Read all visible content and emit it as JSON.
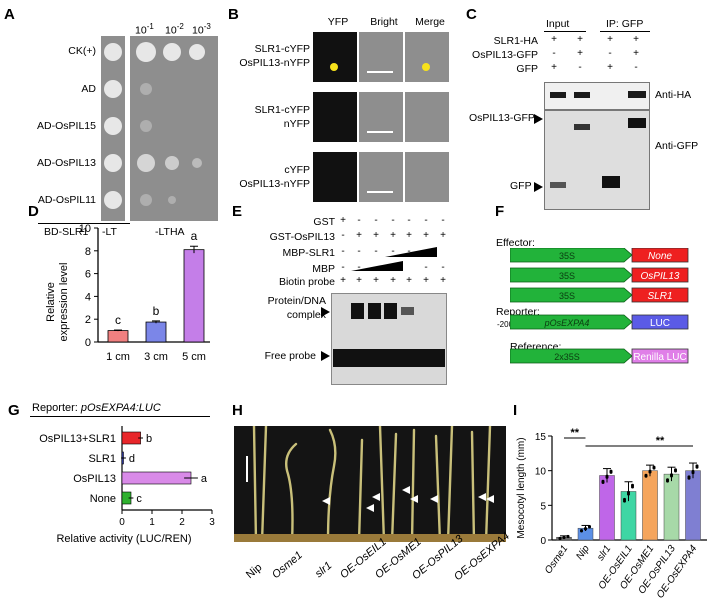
{
  "panels": {
    "A": {
      "label": "A",
      "rows": [
        "CK(+)",
        "AD",
        "AD-OsPIL15",
        "AD-OsPIL13",
        "AD-OsPIL11"
      ],
      "dilutions": [
        "10",
        "-1",
        "10",
        "-2",
        "10",
        "-3"
      ],
      "bait": "BD-SLR1",
      "lt": "-LT",
      "ltha": "-LTHA"
    },
    "B": {
      "label": "B",
      "cols": [
        "YFP",
        "Bright",
        "Merge"
      ],
      "rows": [
        [
          "SLR1-cYFP",
          "OsPIL13-nYFP"
        ],
        [
          "SLR1-cYFP",
          "nYFP"
        ],
        [
          "cYFP",
          "OsPIL13-nYFP"
        ]
      ]
    },
    "C": {
      "label": "C",
      "input": "Input",
      "ip": "IP: GFP",
      "rows": [
        {
          "name": "SLR1-HA",
          "vals": [
            "+",
            "+",
            "+",
            "+"
          ]
        },
        {
          "name": "OsPIL13-GFP",
          "vals": [
            "-",
            "+",
            "-",
            "+"
          ]
        },
        {
          "name": "GFP",
          "vals": [
            "+",
            "-",
            "+",
            "-"
          ]
        }
      ],
      "anti_ha": "Anti-HA",
      "anti_gfp": "Anti-GFP",
      "band_ospil13": "OsPIL13-GFP",
      "band_gfp": "GFP"
    },
    "D": {
      "label": "D",
      "letters": [
        "c",
        "b",
        "a"
      ],
      "ylabel_line1": "Relative",
      "ylabel_line2": "expression level"
    },
    "E": {
      "label": "E",
      "rows": [
        {
          "name": "GST",
          "vals": [
            "+",
            "-",
            "-",
            "-",
            "-",
            "-",
            "-"
          ]
        },
        {
          "name": "GST-OsPIL13",
          "vals": [
            "-",
            "+",
            "+",
            "+",
            "+",
            "+",
            "+"
          ]
        },
        {
          "name": "MBP-SLR1",
          "vals": [
            "-",
            "-",
            "-",
            "-",
            "-",
            "",
            ""
          ]
        },
        {
          "name": "MBP",
          "vals": [
            "-",
            "-",
            "",
            "",
            "",
            "-",
            "-"
          ]
        },
        {
          "name": "Biotin probe",
          "vals": [
            "+",
            "+",
            "+",
            "+",
            "+",
            "+",
            "+"
          ]
        }
      ],
      "complex": [
        "Protein/DNA",
        "complex"
      ],
      "free_probe": "Free probe"
    },
    "F": {
      "label": "F",
      "effector": "Effector:",
      "reporter": "Reporter:",
      "reference": "Reference:",
      "promoter_35s": "35S",
      "effector_genes": [
        "None",
        "OsPIL13",
        "SLR1"
      ],
      "minus2000": "-2000",
      "reporter_promoter": "pOsEXPA4",
      "luc": "LUC",
      "ref_promoter": "2x35S",
      "renilla": "Renilla LUC"
    },
    "G": {
      "label": "G",
      "reporter_prefix": "Reporter: ",
      "reporter_construct": "pOsEXPA4:LUC",
      "rows": [
        {
          "name": "OsPIL13+SLR1",
          "value": 0.62,
          "letter": "b",
          "color": "#e8262a"
        },
        {
          "name": "SLR1",
          "value": 0.05,
          "letter": "d",
          "color": "#3c47c8"
        },
        {
          "name": "OsPIL13",
          "value": 2.3,
          "letter": "a",
          "color": "#d98ae8"
        },
        {
          "name": "None",
          "value": 0.3,
          "letter": "c",
          "color": "#2fb12f"
        }
      ],
      "ticks": [
        "0",
        "1",
        "2",
        "3"
      ],
      "xlabel": "Relative activity (LUC/REN)"
    },
    "H": {
      "label": "H",
      "labels": [
        "Nip",
        "Osme1",
        "slr1",
        "OE-OsEIL1",
        "OE-OsME1",
        "OE-OsPIL13",
        "OE-OsEXPA4"
      ]
    },
    "I": {
      "label": "I",
      "sig1": "**",
      "sig2": "**",
      "ylabel": "Mesocotyl length (mm)",
      "yticks": [
        "0",
        "5",
        "10",
        "15"
      ],
      "categories": [
        "Osme1",
        "Nip",
        "slr1",
        "OE-OsEIL1",
        "OE-OsME1",
        "OE-OsPIL13",
        "OE-OsEXPA4"
      ],
      "values": [
        0.4,
        1.7,
        9.3,
        7.0,
        10.0,
        9.5,
        10.0
      ],
      "errors": [
        0.2,
        0.4,
        1.0,
        1.4,
        0.8,
        1.0,
        1.1
      ],
      "colors": [
        "#707070",
        "#5b8fe6",
        "#bf66e8",
        "#3fd6a4",
        "#f5a55c",
        "#a7d9a8",
        "#7f7fd2"
      ]
    }
  },
  "chart_data": {
    "type": "bar",
    "categories": [
      "1 cm",
      "3 cm",
      "5 cm"
    ],
    "values": [
      1.0,
      1.75,
      8.1
    ],
    "errors": [
      0.05,
      0.1,
      0.3
    ],
    "colors": [
      "#f08080",
      "#7b86e8",
      "#c47ee8"
    ],
    "ylim": [
      0,
      10
    ],
    "yticks": [
      "0",
      "2",
      "4",
      "6",
      "8",
      "10"
    ],
    "ylabel": "Relative expression level"
  }
}
